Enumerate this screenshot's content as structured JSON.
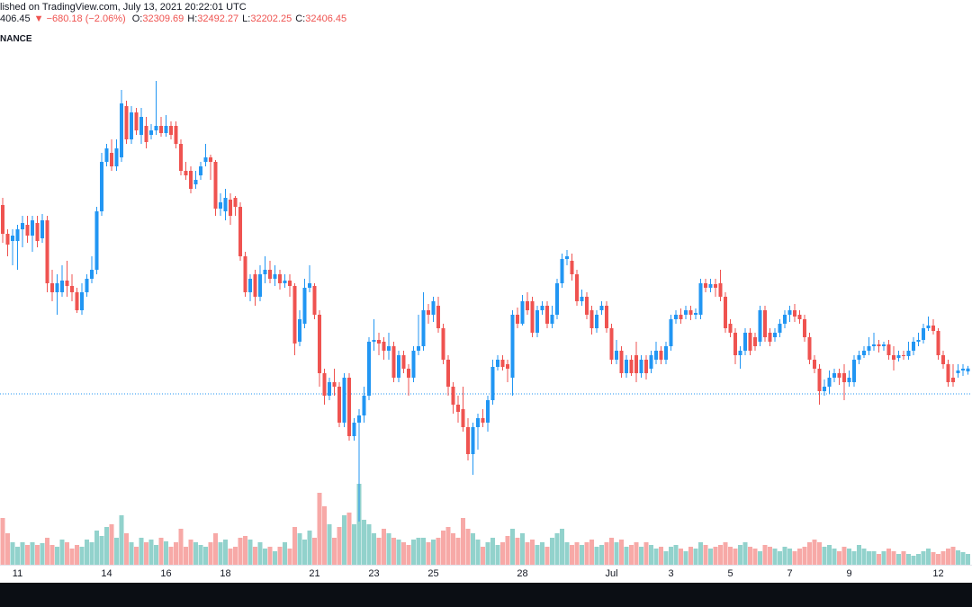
{
  "header": {
    "published": "lished on TradingView.com, July 13, 2021 20:22:01 UTC",
    "last": "406.45",
    "change": "▼ −680.18 (−2.06%)",
    "exchange": "NANCE",
    "ohlc_labels": [
      "O:",
      "H:",
      "L:",
      "C:"
    ]
  },
  "chart_data": {
    "type": "candlestick",
    "categories": [
      null,
      null,
      null,
      "11",
      null,
      null,
      null,
      null,
      null,
      null,
      null,
      null,
      null,
      null,
      null,
      null,
      null,
      null,
      null,
      null,
      null,
      "14",
      null,
      null,
      null,
      null,
      null,
      null,
      null,
      null,
      null,
      null,
      null,
      "16",
      null,
      null,
      null,
      null,
      null,
      null,
      null,
      null,
      null,
      null,
      null,
      "18",
      null,
      null,
      null,
      null,
      null,
      null,
      null,
      null,
      null,
      null,
      null,
      null,
      null,
      null,
      null,
      null,
      null,
      "21",
      null,
      null,
      null,
      null,
      null,
      null,
      null,
      null,
      null,
      null,
      null,
      "23",
      null,
      null,
      null,
      null,
      null,
      null,
      null,
      null,
      null,
      null,
      null,
      "25",
      null,
      null,
      null,
      null,
      null,
      null,
      null,
      null,
      null,
      null,
      null,
      null,
      null,
      null,
      null,
      null,
      null,
      "28",
      null,
      null,
      null,
      null,
      null,
      null,
      null,
      null,
      null,
      null,
      null,
      null,
      null,
      null,
      null,
      null,
      null,
      "Jul",
      null,
      null,
      null,
      null,
      null,
      null,
      null,
      null,
      null,
      null,
      null,
      "3",
      null,
      null,
      null,
      null,
      null,
      null,
      null,
      null,
      null,
      null,
      null,
      "5",
      null,
      null,
      null,
      null,
      null,
      null,
      null,
      null,
      null,
      null,
      null,
      "7",
      null,
      null,
      null,
      null,
      null,
      null,
      null,
      null,
      null,
      null,
      null,
      "9",
      null,
      null,
      null,
      null,
      null,
      null,
      null,
      null,
      null,
      null,
      null,
      null,
      null,
      null,
      null,
      null,
      null,
      "12",
      null,
      null,
      null,
      null,
      null,
      null
    ],
    "open": [
      37860,
      36900,
      36660,
      36660,
      37050,
      37200,
      36840,
      37260,
      36750,
      37350,
      35250,
      34950,
      34950,
      35340,
      35160,
      34950,
      34350,
      34950,
      35400,
      35700,
      37650,
      39300,
      39600,
      39150,
      39450,
      41160,
      40050,
      40950,
      40200,
      40500,
      40200,
      40350,
      40500,
      40260,
      40500,
      40500,
      39900,
      39000,
      39000,
      38550,
      38850,
      39300,
      39450,
      39300,
      37740,
      37650,
      38040,
      38100,
      37800,
      36150,
      34950,
      35550,
      34800,
      35550,
      35700,
      35400,
      35550,
      35250,
      35340,
      35160,
      33300,
      33900,
      35100,
      35160,
      34200,
      32250,
      31500,
      31950,
      31800,
      30600,
      32100,
      30150,
      30600,
      30840,
      31500,
      33300,
      33360,
      33300,
      33000,
      33150,
      32100,
      32850,
      32400,
      32100,
      33000,
      33150,
      34350,
      34200,
      34500,
      33750,
      32700,
      31800,
      31200,
      31050,
      30450,
      29550,
      30450,
      30750,
      30600,
      31350,
      32460,
      32700,
      32550,
      32100,
      34200,
      33900,
      34650,
      34650,
      33600,
      34350,
      34500,
      33900,
      34200,
      35250,
      36060,
      36000,
      35550,
      34650,
      34800,
      34350,
      33750,
      34350,
      34500,
      33750,
      32700,
      33000,
      32250,
      32700,
      32850,
      32250,
      32700,
      32400,
      32700,
      33000,
      32700,
      33150,
      34050,
      34200,
      34200,
      34350,
      34200,
      34200,
      35250,
      35100,
      35220,
      35250,
      34800,
      33900,
      33600,
      32850,
      33000,
      33600,
      33450,
      33300,
      34350,
      33600,
      33450,
      33600,
      33900,
      34200,
      34350,
      34200,
      34050,
      33450,
      32700,
      32400,
      31650,
      31800,
      32100,
      32250,
      32250,
      31950,
      31950,
      32700,
      32850,
      33000,
      33150,
      33210,
      33150,
      33210,
      32850,
      32760,
      32850,
      32820,
      33000,
      33300,
      33360,
      33750,
      33840,
      33660,
      32850,
      32550,
      32100,
      32250,
      32340,
      32309.69
    ],
    "high": [
      38100,
      37050,
      37050,
      37200,
      37500,
      37500,
      37500,
      37500,
      37560,
      37500,
      35700,
      35550,
      35850,
      36000,
      35550,
      35100,
      35250,
      35550,
      36150,
      37800,
      39600,
      39900,
      40050,
      40050,
      41700,
      41340,
      41160,
      41100,
      41100,
      40800,
      40560,
      42000,
      40800,
      40860,
      40650,
      40650,
      40050,
      39300,
      39150,
      39000,
      39300,
      39900,
      39540,
      39360,
      38250,
      38400,
      38250,
      38160,
      37950,
      36300,
      35550,
      35700,
      35850,
      36150,
      36000,
      35850,
      35700,
      35550,
      35550,
      35250,
      34350,
      35400,
      35850,
      35250,
      34350,
      32400,
      32100,
      32400,
      31950,
      32250,
      32250,
      30750,
      31050,
      31800,
      33450,
      34050,
      33600,
      33450,
      33600,
      33300,
      33000,
      33000,
      32550,
      33150,
      34200,
      34950,
      34560,
      34800,
      34800,
      33900,
      32850,
      31950,
      31500,
      31800,
      30750,
      30600,
      30900,
      31050,
      31500,
      32700,
      32850,
      32850,
      32700,
      34350,
      34440,
      34860,
      34950,
      34800,
      34500,
      34650,
      34650,
      34500,
      35400,
      36240,
      36360,
      36240,
      35700,
      35040,
      34950,
      34500,
      34350,
      34650,
      34650,
      33900,
      33360,
      33150,
      32850,
      32850,
      33300,
      32850,
      32850,
      33000,
      33300,
      33150,
      33300,
      34200,
      34350,
      34410,
      34500,
      34500,
      34410,
      35400,
      35400,
      35400,
      35400,
      35700,
      34950,
      34050,
      33750,
      33150,
      33750,
      33750,
      33600,
      34500,
      34500,
      33750,
      33750,
      34050,
      34350,
      34500,
      34560,
      34350,
      34200,
      33600,
      32850,
      32550,
      32040,
      32340,
      32400,
      32400,
      32550,
      32340,
      32850,
      33000,
      33150,
      33450,
      33600,
      33360,
      33300,
      33360,
      33150,
      33000,
      33000,
      33300,
      33450,
      33600,
      33900,
      34140,
      34050,
      33750,
      33000,
      32700,
      32550,
      32550,
      32550,
      32492.27
    ],
    "low": [
      36600,
      36150,
      35850,
      35700,
      36450,
      36600,
      36300,
      36450,
      36600,
      34950,
      34650,
      34200,
      34800,
      34800,
      34650,
      34260,
      34200,
      34800,
      35250,
      35550,
      37500,
      39150,
      39000,
      39000,
      39300,
      39900,
      39900,
      40200,
      39900,
      39750,
      40050,
      40200,
      40140,
      40140,
      40050,
      39750,
      38850,
      38700,
      38250,
      38400,
      38700,
      39150,
      38700,
      37500,
      37500,
      37350,
      37200,
      37500,
      36000,
      34800,
      34650,
      34500,
      34650,
      35250,
      35250,
      35160,
      35040,
      35100,
      34800,
      32850,
      33150,
      33750,
      34950,
      34050,
      31800,
      31200,
      31350,
      31500,
      30450,
      30450,
      30000,
      30000,
      27300,
      30600,
      31350,
      33000,
      32850,
      32700,
      32700,
      31950,
      31950,
      32250,
      31500,
      31950,
      32850,
      33000,
      33900,
      33960,
      33600,
      32550,
      31500,
      30900,
      30600,
      30300,
      29340,
      28860,
      29700,
      30450,
      30300,
      31200,
      32340,
      32340,
      31950,
      31500,
      33750,
      33840,
      34200,
      33450,
      33450,
      34200,
      33750,
      33750,
      34050,
      35100,
      35850,
      35340,
      34500,
      34500,
      34050,
      33540,
      33600,
      34200,
      33600,
      32550,
      32550,
      32100,
      32100,
      32160,
      31950,
      32100,
      32040,
      32250,
      32550,
      32550,
      32550,
      33000,
      33900,
      33900,
      34050,
      34020,
      34050,
      34050,
      34950,
      34950,
      34800,
      34650,
      33600,
      33450,
      32550,
      32400,
      32850,
      32850,
      33000,
      33150,
      33300,
      33150,
      33300,
      33450,
      33750,
      33960,
      33960,
      33900,
      33300,
      32550,
      32250,
      31200,
      31500,
      31560,
      31950,
      31860,
      31350,
      31800,
      31800,
      32550,
      32760,
      32850,
      33000,
      32940,
      33000,
      32700,
      32340,
      32640,
      32700,
      32700,
      32850,
      33150,
      33240,
      33660,
      33540,
      32700,
      32400,
      31800,
      31800,
      32100,
      32160,
      32202.25
    ],
    "close": [
      36900,
      36540,
      36840,
      37050,
      37260,
      36840,
      37350,
      36660,
      37350,
      35250,
      34950,
      35250,
      35340,
      35160,
      34950,
      34350,
      34950,
      35400,
      35700,
      37650,
      39300,
      39750,
      39150,
      39750,
      41250,
      40050,
      40950,
      40350,
      40800,
      39960,
      40350,
      40500,
      40260,
      40500,
      40200,
      39900,
      39000,
      38850,
      38400,
      38700,
      39150,
      39450,
      39300,
      37740,
      37950,
      38100,
      37500,
      37800,
      36150,
      34950,
      35400,
      34800,
      35550,
      35700,
      35400,
      35550,
      35250,
      35340,
      35160,
      33240,
      34050,
      35100,
      35250,
      34200,
      32250,
      31500,
      31950,
      31800,
      30600,
      32100,
      30150,
      30600,
      30840,
      31500,
      33300,
      33360,
      33240,
      33000,
      33150,
      32100,
      32850,
      32400,
      32100,
      33000,
      33150,
      34350,
      34200,
      34650,
      33750,
      32700,
      31800,
      31200,
      30960,
      30450,
      29550,
      30450,
      30750,
      30600,
      31350,
      32460,
      32700,
      32460,
      32400,
      34200,
      33900,
      34650,
      34350,
      33600,
      34350,
      34500,
      33900,
      34200,
      35250,
      36060,
      36150,
      35550,
      34650,
      34800,
      34200,
      33750,
      34200,
      34500,
      33750,
      32700,
      33000,
      32250,
      32700,
      32250,
      32250,
      32700,
      32250,
      32850,
      33000,
      32700,
      33150,
      34050,
      34200,
      34050,
      34350,
      34200,
      34260,
      35250,
      35100,
      35220,
      35100,
      34800,
      33750,
      33600,
      32850,
      33000,
      33600,
      33000,
      33150,
      34350,
      33450,
      33300,
      33600,
      33900,
      34200,
      34350,
      34140,
      34050,
      33450,
      32700,
      32400,
      31650,
      31800,
      32100,
      32250,
      32100,
      31950,
      32100,
      32700,
      32850,
      33000,
      33150,
      33210,
      33150,
      33210,
      32850,
      32700,
      32850,
      32820,
      33000,
      33300,
      33360,
      33750,
      33840,
      33660,
      32850,
      32550,
      31950,
      31950,
      32340,
      32400,
      32406.45
    ],
    "volume": [
      10400,
      7000,
      5000,
      4000,
      5000,
      4400,
      5000,
      4400,
      4800,
      6000,
      4400,
      4000,
      5600,
      5000,
      3600,
      4400,
      4000,
      5600,
      5000,
      7600,
      6400,
      8400,
      9000,
      6000,
      11000,
      7000,
      5000,
      4000,
      6000,
      5000,
      5600,
      4400,
      6000,
      5200,
      4000,
      5000,
      8000,
      4000,
      5600,
      5000,
      4400,
      4000,
      5000,
      7000,
      5000,
      5600,
      3600,
      4000,
      6000,
      6400,
      5600,
      4000,
      5000,
      3600,
      4000,
      3000,
      4000,
      5000,
      3600,
      8400,
      7000,
      5600,
      7600,
      6000,
      16000,
      13000,
      9000,
      6000,
      8400,
      11000,
      11600,
      9000,
      18000,
      10000,
      9000,
      7000,
      6000,
      8000,
      7000,
      6000,
      5600,
      5000,
      4400,
      5600,
      6000,
      6000,
      5000,
      5600,
      6000,
      7600,
      8400,
      7000,
      6000,
      10400,
      8000,
      7000,
      5600,
      4000,
      5000,
      6000,
      4400,
      5000,
      6400,
      8000,
      6000,
      7000,
      5000,
      5600,
      4400,
      5000,
      4000,
      6000,
      7000,
      8000,
      5000,
      4400,
      5000,
      4400,
      5000,
      5600,
      4000,
      4400,
      5000,
      6000,
      5000,
      5600,
      4000,
      4400,
      5000,
      4000,
      5000,
      4400,
      3600,
      4000,
      3000,
      4000,
      4400,
      3600,
      3000,
      4000,
      3600,
      5000,
      4400,
      3600,
      4000,
      4400,
      5000,
      4000,
      3600,
      4400,
      5000,
      4000,
      3600,
      3000,
      4400,
      4000,
      3600,
      3000,
      4000,
      3600,
      3000,
      3600,
      4000,
      5000,
      5600,
      5000,
      4000,
      4400,
      3600,
      3000,
      4000,
      3600,
      3000,
      4400,
      3600,
      3000,
      3000,
      2400,
      3000,
      3600,
      3000,
      2400,
      3000,
      2400,
      2000,
      2400,
      3000,
      3600,
      2800,
      2400,
      3000,
      3600,
      4000,
      3200,
      2800,
      2400
    ],
    "up_color": "#2196f3",
    "down_color": "#ef5350",
    "volume_up_color": "#26a69a",
    "volume_down_color": "#ef5350",
    "price_line": 31560
  }
}
